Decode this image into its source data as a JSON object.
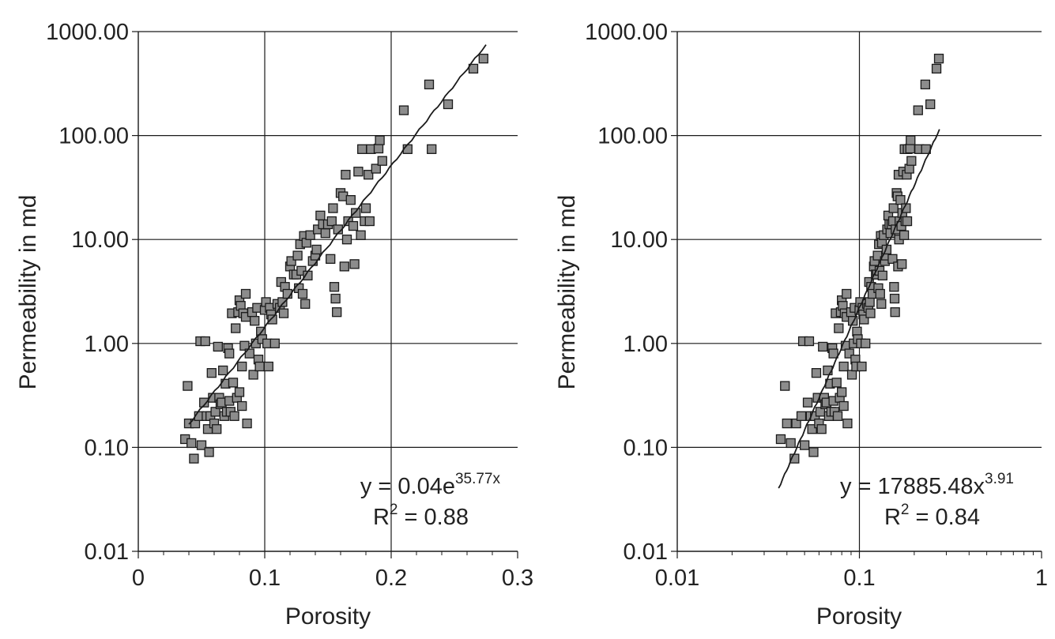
{
  "style": {
    "marker_fill": "#8c8c8c",
    "marker_stroke": "#1a1a1a",
    "line_color": "#1a1a1a",
    "grid_color": "#1a1a1a"
  },
  "chart_data": [
    {
      "type": "scatter",
      "xlabel": "Porosity",
      "ylabel": "Permeability in md",
      "x_scale": "linear",
      "y_scale": "log",
      "xlim": [
        0,
        0.3
      ],
      "ylim": [
        0.01,
        1000
      ],
      "xticks": [
        "0",
        "0.1",
        "0.2",
        "0.3"
      ],
      "yticks": [
        "0.01",
        "0.10",
        "1.00",
        "10.00",
        "100.00",
        "1000.00"
      ],
      "grid": true,
      "fit": {
        "type": "exponential",
        "a": 0.04,
        "b": 35.77,
        "x_range": [
          0.04,
          0.275
        ]
      },
      "equation": {
        "base": "y = 0.04e",
        "exponent": "35.77x"
      },
      "r2": {
        "prefix": "R",
        "sup": "2",
        "suffix": " = 0.88"
      },
      "points": [
        [
          0.037,
          0.12
        ],
        [
          0.039,
          0.39
        ],
        [
          0.04,
          0.17
        ],
        [
          0.042,
          0.11
        ],
        [
          0.044,
          0.078
        ],
        [
          0.045,
          0.17
        ],
        [
          0.048,
          0.2
        ],
        [
          0.049,
          1.05
        ],
        [
          0.05,
          0.105
        ],
        [
          0.052,
          0.27
        ],
        [
          0.053,
          1.05
        ],
        [
          0.054,
          0.2
        ],
        [
          0.055,
          0.15
        ],
        [
          0.056,
          0.09
        ],
        [
          0.057,
          0.2
        ],
        [
          0.058,
          0.52
        ],
        [
          0.059,
          0.3
        ],
        [
          0.06,
          0.17
        ],
        [
          0.061,
          0.22
        ],
        [
          0.062,
          0.15
        ],
        [
          0.063,
          0.93
        ],
        [
          0.064,
          0.3
        ],
        [
          0.065,
          0.26
        ],
        [
          0.066,
          0.27
        ],
        [
          0.067,
          0.55
        ],
        [
          0.068,
          0.2
        ],
        [
          0.069,
          0.41
        ],
        [
          0.07,
          0.22
        ],
        [
          0.071,
          0.9
        ],
        [
          0.072,
          0.8
        ],
        [
          0.072,
          0.28
        ],
        [
          0.073,
          0.22
        ],
        [
          0.074,
          1.95
        ],
        [
          0.075,
          0.42
        ],
        [
          0.076,
          0.2
        ],
        [
          0.077,
          1.4
        ],
        [
          0.078,
          0.3
        ],
        [
          0.079,
          2.0
        ],
        [
          0.08,
          2.6
        ],
        [
          0.08,
          0.34
        ],
        [
          0.081,
          2.3
        ],
        [
          0.082,
          0.6
        ],
        [
          0.082,
          0.25
        ],
        [
          0.083,
          1.95
        ],
        [
          0.084,
          0.95
        ],
        [
          0.085,
          3.0
        ],
        [
          0.085,
          1.8
        ],
        [
          0.086,
          0.17
        ],
        [
          0.088,
          0.8
        ],
        [
          0.09,
          2.0
        ],
        [
          0.091,
          0.5
        ],
        [
          0.092,
          1.65
        ],
        [
          0.093,
          1.0
        ],
        [
          0.094,
          2.2
        ],
        [
          0.095,
          0.7
        ],
        [
          0.096,
          0.6
        ],
        [
          0.097,
          1.3
        ],
        [
          0.098,
          1.1
        ],
        [
          0.1,
          2.1
        ],
        [
          0.101,
          2.5
        ],
        [
          0.102,
          1.0
        ],
        [
          0.103,
          0.6
        ],
        [
          0.104,
          2.2
        ],
        [
          0.105,
          1.9
        ],
        [
          0.106,
          1.7
        ],
        [
          0.108,
          1.0
        ],
        [
          0.11,
          2.4
        ],
        [
          0.112,
          2.2
        ],
        [
          0.113,
          3.9
        ],
        [
          0.114,
          2.5
        ],
        [
          0.115,
          1.95
        ],
        [
          0.116,
          3.5
        ],
        [
          0.118,
          3.0
        ],
        [
          0.12,
          5.5
        ],
        [
          0.121,
          6.2
        ],
        [
          0.123,
          4.6
        ],
        [
          0.125,
          4.6
        ],
        [
          0.126,
          7.0
        ],
        [
          0.127,
          3.4
        ],
        [
          0.128,
          9.0
        ],
        [
          0.129,
          5.0
        ],
        [
          0.13,
          3.0
        ],
        [
          0.131,
          10.8
        ],
        [
          0.132,
          2.4
        ],
        [
          0.133,
          9.3
        ],
        [
          0.134,
          4.5
        ],
        [
          0.136,
          11.0
        ],
        [
          0.138,
          6.2
        ],
        [
          0.14,
          7.0
        ],
        [
          0.141,
          8.0
        ],
        [
          0.142,
          12.5
        ],
        [
          0.144,
          17.0
        ],
        [
          0.146,
          14.0
        ],
        [
          0.148,
          11.5
        ],
        [
          0.15,
          14.0
        ],
        [
          0.152,
          6.5
        ],
        [
          0.153,
          15.0
        ],
        [
          0.154,
          20.0
        ],
        [
          0.155,
          3.5
        ],
        [
          0.156,
          2.7
        ],
        [
          0.157,
          2.0
        ],
        [
          0.158,
          12.5
        ],
        [
          0.16,
          28.0
        ],
        [
          0.162,
          26.0
        ],
        [
          0.163,
          5.5
        ],
        [
          0.164,
          42.0
        ],
        [
          0.165,
          10.0
        ],
        [
          0.166,
          15.0
        ],
        [
          0.168,
          24.0
        ],
        [
          0.17,
          13.5
        ],
        [
          0.171,
          5.8
        ],
        [
          0.172,
          18.0
        ],
        [
          0.174,
          45.0
        ],
        [
          0.176,
          11.0
        ],
        [
          0.177,
          74.0
        ],
        [
          0.179,
          15.0
        ],
        [
          0.18,
          20.0
        ],
        [
          0.182,
          42.0
        ],
        [
          0.183,
          15.0
        ],
        [
          0.184,
          74.0
        ],
        [
          0.188,
          48.0
        ],
        [
          0.19,
          75.0
        ],
        [
          0.191,
          90.0
        ],
        [
          0.193,
          57.0
        ],
        [
          0.21,
          175.0
        ],
        [
          0.213,
          74.0
        ],
        [
          0.23,
          310.0
        ],
        [
          0.232,
          74.0
        ],
        [
          0.245,
          200.0
        ],
        [
          0.265,
          440.0
        ],
        [
          0.273,
          550.0
        ]
      ]
    },
    {
      "type": "scatter",
      "xlabel": "Porosity",
      "ylabel": "Permeability in md",
      "x_scale": "log",
      "y_scale": "log",
      "xlim": [
        0.01,
        1
      ],
      "ylim": [
        0.01,
        1000
      ],
      "xticks": [
        "0.01",
        "0.1",
        "1"
      ],
      "yticks": [
        "0.01",
        "0.10",
        "1.00",
        "10.00",
        "100.00",
        "1000.00"
      ],
      "grid": true,
      "fit": {
        "type": "power",
        "a": 17885.48,
        "b": 3.91,
        "x_range": [
          0.036,
          0.275
        ]
      },
      "equation": {
        "base": "y = 17885.48x",
        "exponent": "3.91"
      },
      "r2": {
        "prefix": "R",
        "sup": "2",
        "suffix": " = 0.84"
      },
      "points": [
        [
          0.037,
          0.12
        ],
        [
          0.039,
          0.39
        ],
        [
          0.04,
          0.17
        ],
        [
          0.042,
          0.11
        ],
        [
          0.044,
          0.078
        ],
        [
          0.045,
          0.17
        ],
        [
          0.048,
          0.2
        ],
        [
          0.049,
          1.05
        ],
        [
          0.05,
          0.105
        ],
        [
          0.052,
          0.27
        ],
        [
          0.053,
          1.05
        ],
        [
          0.054,
          0.2
        ],
        [
          0.055,
          0.15
        ],
        [
          0.056,
          0.09
        ],
        [
          0.057,
          0.2
        ],
        [
          0.058,
          0.52
        ],
        [
          0.059,
          0.3
        ],
        [
          0.06,
          0.17
        ],
        [
          0.061,
          0.22
        ],
        [
          0.062,
          0.15
        ],
        [
          0.063,
          0.93
        ],
        [
          0.064,
          0.3
        ],
        [
          0.065,
          0.26
        ],
        [
          0.066,
          0.27
        ],
        [
          0.067,
          0.55
        ],
        [
          0.068,
          0.2
        ],
        [
          0.069,
          0.41
        ],
        [
          0.07,
          0.22
        ],
        [
          0.071,
          0.9
        ],
        [
          0.072,
          0.8
        ],
        [
          0.072,
          0.28
        ],
        [
          0.073,
          0.22
        ],
        [
          0.074,
          1.95
        ],
        [
          0.075,
          0.42
        ],
        [
          0.076,
          0.2
        ],
        [
          0.077,
          1.4
        ],
        [
          0.078,
          0.3
        ],
        [
          0.079,
          2.0
        ],
        [
          0.08,
          2.6
        ],
        [
          0.08,
          0.34
        ],
        [
          0.081,
          2.3
        ],
        [
          0.082,
          0.6
        ],
        [
          0.082,
          0.25
        ],
        [
          0.083,
          1.95
        ],
        [
          0.084,
          0.95
        ],
        [
          0.085,
          3.0
        ],
        [
          0.085,
          1.8
        ],
        [
          0.086,
          0.17
        ],
        [
          0.088,
          0.8
        ],
        [
          0.09,
          2.0
        ],
        [
          0.091,
          0.5
        ],
        [
          0.092,
          1.65
        ],
        [
          0.093,
          1.0
        ],
        [
          0.094,
          2.2
        ],
        [
          0.095,
          0.7
        ],
        [
          0.096,
          0.6
        ],
        [
          0.097,
          1.3
        ],
        [
          0.098,
          1.1
        ],
        [
          0.1,
          2.1
        ],
        [
          0.101,
          2.5
        ],
        [
          0.102,
          1.0
        ],
        [
          0.103,
          0.6
        ],
        [
          0.104,
          2.2
        ],
        [
          0.105,
          1.9
        ],
        [
          0.106,
          1.7
        ],
        [
          0.108,
          1.0
        ],
        [
          0.11,
          2.4
        ],
        [
          0.112,
          2.2
        ],
        [
          0.113,
          3.9
        ],
        [
          0.114,
          2.5
        ],
        [
          0.115,
          1.95
        ],
        [
          0.116,
          3.5
        ],
        [
          0.118,
          3.0
        ],
        [
          0.12,
          5.5
        ],
        [
          0.121,
          6.2
        ],
        [
          0.123,
          4.6
        ],
        [
          0.125,
          4.6
        ],
        [
          0.126,
          7.0
        ],
        [
          0.127,
          3.4
        ],
        [
          0.128,
          9.0
        ],
        [
          0.129,
          5.0
        ],
        [
          0.13,
          3.0
        ],
        [
          0.131,
          10.8
        ],
        [
          0.132,
          2.4
        ],
        [
          0.133,
          9.3
        ],
        [
          0.134,
          4.5
        ],
        [
          0.136,
          11.0
        ],
        [
          0.138,
          6.2
        ],
        [
          0.14,
          7.0
        ],
        [
          0.141,
          8.0
        ],
        [
          0.142,
          12.5
        ],
        [
          0.144,
          17.0
        ],
        [
          0.146,
          14.0
        ],
        [
          0.148,
          11.5
        ],
        [
          0.15,
          14.0
        ],
        [
          0.152,
          6.5
        ],
        [
          0.153,
          15.0
        ],
        [
          0.154,
          20.0
        ],
        [
          0.155,
          3.5
        ],
        [
          0.156,
          2.7
        ],
        [
          0.157,
          2.0
        ],
        [
          0.158,
          12.5
        ],
        [
          0.16,
          28.0
        ],
        [
          0.162,
          26.0
        ],
        [
          0.163,
          5.5
        ],
        [
          0.164,
          42.0
        ],
        [
          0.165,
          10.0
        ],
        [
          0.166,
          15.0
        ],
        [
          0.168,
          24.0
        ],
        [
          0.17,
          13.5
        ],
        [
          0.171,
          5.8
        ],
        [
          0.172,
          18.0
        ],
        [
          0.174,
          45.0
        ],
        [
          0.176,
          11.0
        ],
        [
          0.177,
          74.0
        ],
        [
          0.179,
          15.0
        ],
        [
          0.18,
          20.0
        ],
        [
          0.182,
          42.0
        ],
        [
          0.183,
          15.0
        ],
        [
          0.184,
          74.0
        ],
        [
          0.188,
          48.0
        ],
        [
          0.19,
          75.0
        ],
        [
          0.191,
          90.0
        ],
        [
          0.193,
          57.0
        ],
        [
          0.21,
          175.0
        ],
        [
          0.213,
          74.0
        ],
        [
          0.23,
          310.0
        ],
        [
          0.232,
          74.0
        ],
        [
          0.245,
          200.0
        ],
        [
          0.265,
          440.0
        ],
        [
          0.273,
          550.0
        ]
      ]
    }
  ]
}
